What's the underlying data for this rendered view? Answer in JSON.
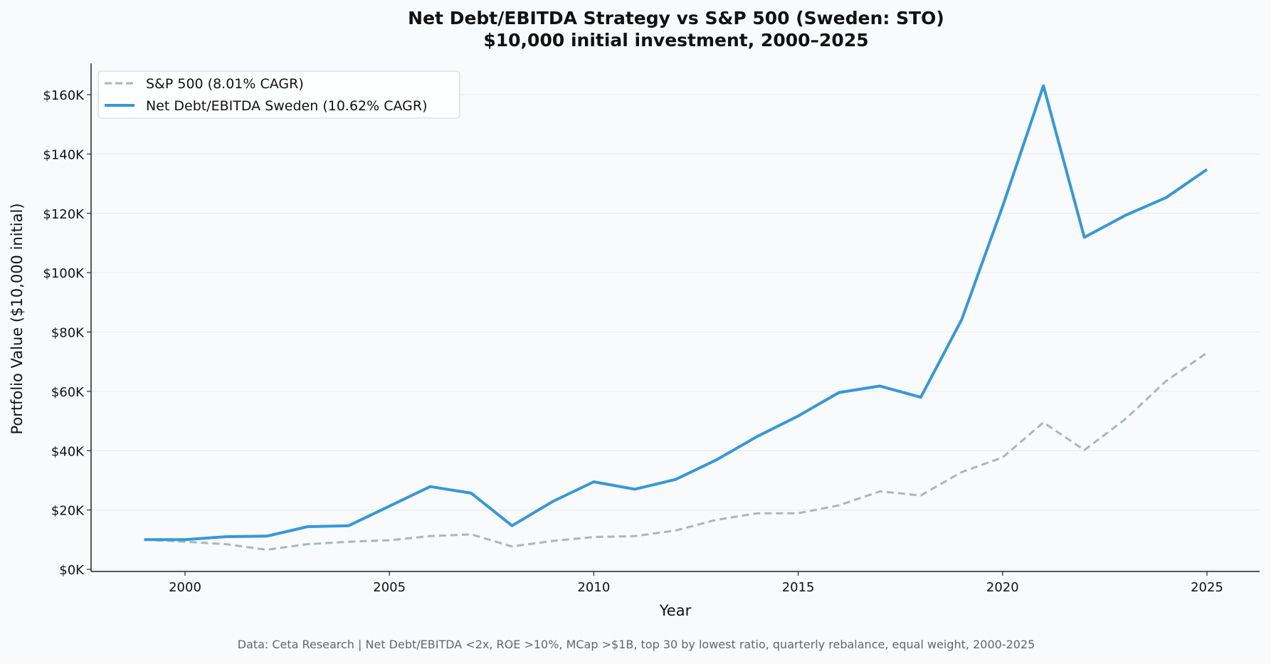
{
  "chart_data": {
    "type": "line",
    "title": "Net Debt/EBITDA Strategy vs S&P 500 (Sweden: STO)",
    "subtitle": "$10,000 initial investment, 2000–2025",
    "xlabel": "Year",
    "ylabel": "Portfolio Value ($10,000 initial)",
    "footnote": "Data: Ceta Research | Net Debt/EBITDA <2x, ROE >10%, MCap >$1B, top 30 by lowest ratio, quarterly rebalance, equal weight, 2000-2025",
    "xlim": [
      1997.8,
      2026.4
    ],
    "ylim": [
      -1000,
      170000
    ],
    "x_ticks": [
      2000,
      2005,
      2010,
      2015,
      2020,
      2025
    ],
    "x_tick_labels": [
      "2000",
      "2005",
      "2010",
      "2015",
      "2020",
      "2025"
    ],
    "y_ticks": [
      0,
      20000,
      40000,
      60000,
      80000,
      100000,
      120000,
      140000,
      160000
    ],
    "y_tick_labels": [
      "$0K",
      "$20K",
      "$40K",
      "$60K",
      "$80K",
      "$100K",
      "$120K",
      "$140K",
      "$160K"
    ],
    "grid": "horizontal",
    "legend_position": "top-left",
    "x": [
      1999,
      2000,
      2001,
      2002,
      2003,
      2004,
      2005,
      2006,
      2007,
      2008,
      2009,
      2010,
      2011,
      2012,
      2013,
      2014,
      2015,
      2016,
      2017,
      2018,
      2019,
      2020,
      2021,
      2022,
      2023,
      2024,
      2025
    ],
    "series": [
      {
        "name": "S&P 500 (8.01% CAGR)",
        "color": "#a7b8b8",
        "style": "dashed",
        "values": [
          10000,
          9300,
          8500,
          6600,
          8500,
          9300,
          9800,
          11200,
          11800,
          7700,
          9600,
          10900,
          11200,
          13100,
          16700,
          18900,
          18900,
          21600,
          26300,
          24900,
          32800,
          37700,
          49500,
          40200,
          50600,
          63500,
          73000
        ]
      },
      {
        "name": "Net Debt/EBITDA Sweden (10.62% CAGR)",
        "color": "#3498db",
        "style": "solid",
        "values": [
          10000,
          10000,
          11000,
          11200,
          14400,
          14700,
          21300,
          27900,
          25700,
          14700,
          22900,
          29500,
          27000,
          30300,
          36900,
          44800,
          51700,
          59600,
          61800,
          58000,
          84200,
          122300,
          163000,
          111900,
          119300,
          125300,
          134800
        ]
      }
    ]
  }
}
